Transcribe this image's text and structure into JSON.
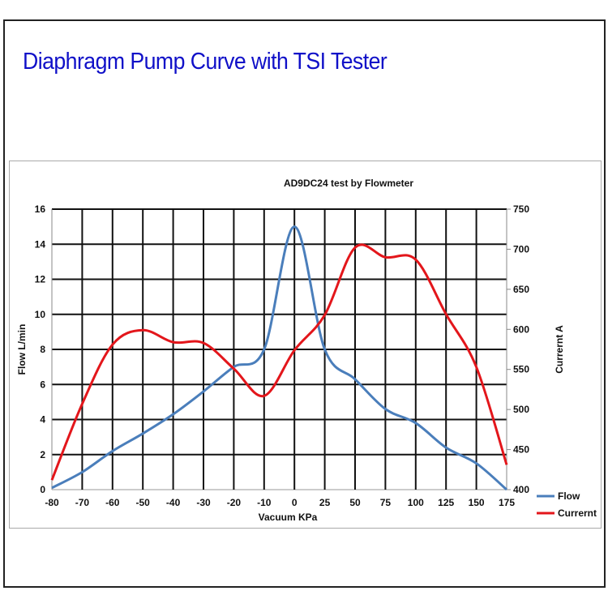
{
  "page_title": "Diaphragm Pump Curve with TSI Tester",
  "chart_data": {
    "type": "line",
    "title": "AD9DC24  test by Flowmeter",
    "xlabel": "Vacuum  KPa",
    "ylabel": "Flow  L/min",
    "y2label": "Currernt A",
    "categories": [
      "-80",
      "-70",
      "-60",
      "-50",
      "-40",
      "-30",
      "-20",
      "-10",
      "0",
      "25",
      "50",
      "75",
      "100",
      "125",
      "150",
      "175"
    ],
    "ylim": [
      0,
      16
    ],
    "yticks": [
      "0",
      "2",
      "4",
      "6",
      "8",
      "10",
      "12",
      "14",
      "16"
    ],
    "y2lim": [
      400,
      750
    ],
    "y2ticks": [
      "400",
      "450",
      "500",
      "550",
      "600",
      "650",
      "700",
      "750"
    ],
    "grid": true,
    "legend": "right",
    "series": [
      {
        "name": "Flow",
        "axis": "left",
        "color": "#4a7ebb",
        "values": [
          0.1,
          1.0,
          2.2,
          3.2,
          4.3,
          5.6,
          7.0,
          8.0,
          15.0,
          8.0,
          6.3,
          4.6,
          3.8,
          2.4,
          1.5,
          0.0
        ]
      },
      {
        "name": "Currernt",
        "axis": "right",
        "color": "#e3161b",
        "values": [
          412,
          507,
          581,
          599,
          584,
          583,
          551,
          517,
          574,
          618,
          702,
          690,
          687,
          619,
          553,
          431
        ]
      }
    ]
  }
}
